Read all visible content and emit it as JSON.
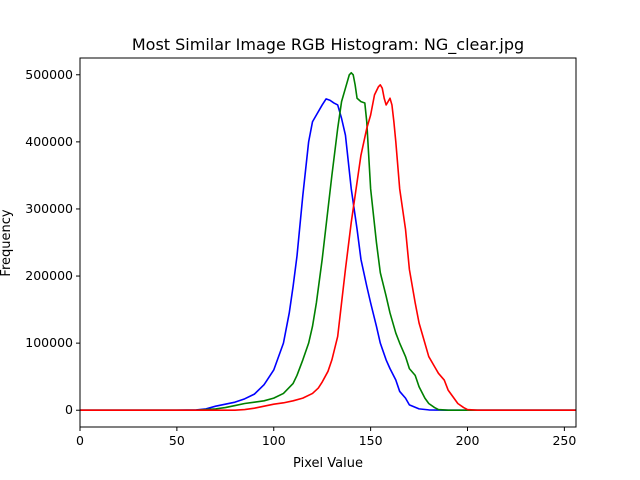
{
  "chart_data": {
    "type": "line",
    "title": "Most Similar Image RGB Histogram: NG_clear.jpg",
    "xlabel": "Pixel Value",
    "ylabel": "Frequency",
    "xlim": [
      0,
      256
    ],
    "ylim": [
      -25000,
      525000
    ],
    "xticks": [
      0,
      50,
      100,
      150,
      200,
      250
    ],
    "yticks": [
      0,
      100000,
      200000,
      300000,
      400000,
      500000
    ],
    "grid": false,
    "series": [
      {
        "color": "#0000ff",
        "x": [
          0,
          50,
          60,
          65,
          70,
          75,
          80,
          85,
          90,
          95,
          100,
          105,
          108,
          110,
          112,
          115,
          118,
          120,
          122,
          125,
          127,
          129,
          131,
          133,
          135,
          137,
          140,
          143,
          145,
          148,
          150,
          153,
          155,
          158,
          160,
          163,
          165,
          168,
          170,
          175,
          180,
          190,
          200,
          256
        ],
        "y": [
          0,
          0,
          500,
          2000,
          6000,
          9000,
          12000,
          17000,
          24000,
          38000,
          60000,
          100000,
          145000,
          185000,
          230000,
          320000,
          400000,
          430000,
          440000,
          455000,
          464000,
          462000,
          458000,
          455000,
          435000,
          410000,
          330000,
          270000,
          225000,
          185000,
          160000,
          125000,
          100000,
          75000,
          62000,
          45000,
          28000,
          18000,
          8000,
          2000,
          500,
          0,
          0,
          0
        ]
      },
      {
        "color": "#008000",
        "x": [
          0,
          60,
          70,
          75,
          80,
          85,
          90,
          95,
          100,
          105,
          110,
          112,
          115,
          118,
          120,
          122,
          125,
          128,
          130,
          133,
          135,
          137,
          139,
          140,
          141,
          142,
          143,
          145,
          147,
          148,
          150,
          153,
          155,
          158,
          160,
          163,
          165,
          168,
          170,
          173,
          175,
          178,
          180,
          183,
          185,
          190,
          200,
          256
        ],
        "y": [
          0,
          0,
          2000,
          4000,
          7000,
          10000,
          12000,
          14000,
          18000,
          25000,
          40000,
          52000,
          75000,
          100000,
          125000,
          160000,
          225000,
          300000,
          350000,
          420000,
          460000,
          480000,
          500000,
          503000,
          500000,
          485000,
          465000,
          460000,
          458000,
          430000,
          330000,
          250000,
          205000,
          170000,
          145000,
          115000,
          100000,
          80000,
          62000,
          52000,
          35000,
          18000,
          10000,
          4000,
          1000,
          0,
          0,
          0
        ]
      },
      {
        "color": "#ff0000",
        "x": [
          0,
          80,
          85,
          90,
          95,
          100,
          105,
          110,
          115,
          120,
          123,
          125,
          128,
          130,
          133,
          135,
          137,
          140,
          143,
          145,
          148,
          150,
          152,
          154,
          155,
          156,
          157,
          158,
          159,
          160,
          161,
          162,
          163,
          165,
          168,
          170,
          173,
          175,
          178,
          180,
          183,
          185,
          188,
          190,
          193,
          195,
          198,
          200,
          205,
          256
        ],
        "y": [
          0,
          0,
          1000,
          3000,
          6000,
          9000,
          11000,
          14000,
          18000,
          25000,
          33000,
          42000,
          58000,
          75000,
          110000,
          160000,
          210000,
          280000,
          340000,
          380000,
          420000,
          440000,
          470000,
          482000,
          485000,
          480000,
          465000,
          455000,
          460000,
          465000,
          455000,
          430000,
          400000,
          330000,
          270000,
          210000,
          160000,
          130000,
          100000,
          80000,
          65000,
          55000,
          45000,
          30000,
          18000,
          10000,
          4000,
          1000,
          0,
          0
        ]
      }
    ]
  }
}
